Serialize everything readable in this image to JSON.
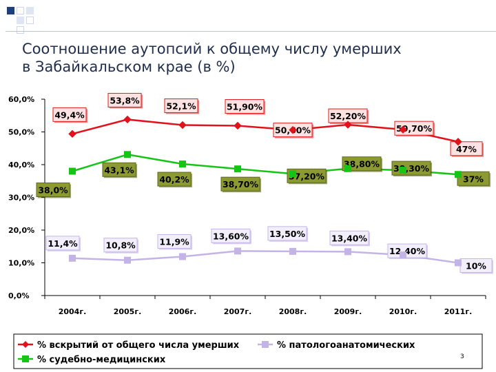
{
  "slide": {
    "title": "Соотношение аутопсий к общему числу умерших в Забайкальском крае (в %)",
    "page_number": "3"
  },
  "chart_data": {
    "type": "line",
    "title": "",
    "xlabel": "",
    "ylabel": "",
    "categories": [
      "2004г.",
      "2005г.",
      "2006г.",
      "2007г.",
      "2008г.",
      "2009г.",
      "2010г.",
      "2011г."
    ],
    "y_ticks": [
      "0,0%",
      "10,0%",
      "20,0%",
      "30,0%",
      "40,0%",
      "50,0%",
      "60,0%"
    ],
    "ylim": [
      0,
      60
    ],
    "grid": false,
    "legend_position": "bottom",
    "series": [
      {
        "name": "% вскрытий от общего числа умерших",
        "color": "#e0121b",
        "marker": "diamond",
        "values": [
          49.4,
          53.8,
          52.1,
          51.9,
          50.6,
          52.2,
          50.7,
          47
        ],
        "labels": [
          "49,4%",
          "53,8%",
          "52,1%",
          "51,90%",
          "50,60%",
          "52,20%",
          "50,70%",
          "47%"
        ]
      },
      {
        "name": "% судебно-медицинских",
        "color": "#16c416",
        "marker": "square",
        "values": [
          38.0,
          43.1,
          40.2,
          38.7,
          37.2,
          38.8,
          38.3,
          37
        ],
        "labels": [
          "38,0%",
          "43,1%",
          "40,2%",
          "38,70%",
          "37,20%",
          "38,80%",
          "38,30%",
          "37%"
        ]
      },
      {
        "name": "% патологоанатомических",
        "color": "#c3b3e6",
        "marker": "square",
        "values": [
          11.4,
          10.8,
          11.9,
          13.6,
          13.5,
          13.4,
          12.4,
          10
        ],
        "labels": [
          "11,4%",
          "10,8%",
          "11,9%",
          "13,60%",
          "13,50%",
          "13,40%",
          "12,40%",
          "10%"
        ]
      }
    ]
  }
}
